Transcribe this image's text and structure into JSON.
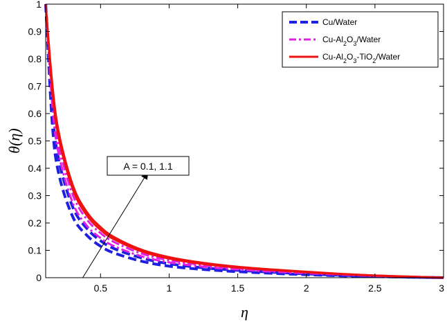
{
  "chart_data": {
    "type": "line",
    "title": "",
    "xlabel": "η",
    "ylabel": "θ(η)",
    "xlim": [
      0.1,
      3
    ],
    "ylim": [
      0,
      1
    ],
    "xticks": [
      "0.5",
      "1",
      "1.5",
      "2",
      "2.5",
      "3"
    ],
    "yticks": [
      "0",
      "0.1",
      "0.2",
      "0.3",
      "0.4",
      "0.5",
      "0.6",
      "0.7",
      "0.8",
      "0.9",
      "1"
    ],
    "grid": false,
    "legend_position": "top-right",
    "x": [
      0.1,
      0.15,
      0.2,
      0.3,
      0.4,
      0.5,
      0.6,
      0.8,
      1.0,
      1.25,
      1.5,
      1.75,
      2.0,
      2.25,
      2.5,
      2.75,
      3.0
    ],
    "series": [
      {
        "name": "Cu/Water",
        "style": "dashed",
        "color": "#1f1fe0",
        "variant": "A = 0.1",
        "values": [
          1.0,
          0.55,
          0.37,
          0.22,
          0.155,
          0.115,
          0.09,
          0.06,
          0.042,
          0.03,
          0.022,
          0.016,
          0.011,
          0.007,
          0.004,
          0.002,
          0.0
        ]
      },
      {
        "name": "Cu/Water",
        "style": "dashed",
        "color": "#1f1fe0",
        "variant": "A = 1.1",
        "values": [
          1.0,
          0.6,
          0.42,
          0.255,
          0.18,
          0.135,
          0.106,
          0.072,
          0.051,
          0.036,
          0.027,
          0.02,
          0.014,
          0.009,
          0.005,
          0.002,
          0.0
        ]
      },
      {
        "name": "Cu-Al2O3/Water",
        "style": "dashdot",
        "color": "#e020e0",
        "variant": "A = 0.1",
        "values": [
          1.0,
          0.62,
          0.44,
          0.27,
          0.19,
          0.145,
          0.115,
          0.078,
          0.056,
          0.04,
          0.03,
          0.022,
          0.016,
          0.011,
          0.006,
          0.003,
          0.0
        ]
      },
      {
        "name": "Cu-Al2O3/Water",
        "style": "dashdot",
        "color": "#e020e0",
        "variant": "A = 1.1",
        "values": [
          1.0,
          0.65,
          0.475,
          0.3,
          0.213,
          0.163,
          0.13,
          0.088,
          0.064,
          0.046,
          0.034,
          0.025,
          0.018,
          0.012,
          0.007,
          0.003,
          0.0
        ]
      },
      {
        "name": "Cu-Al2O3-TiO2/Water",
        "style": "solid",
        "color": "#ee1111",
        "variant": "A = 0.1",
        "values": [
          1.0,
          0.67,
          0.5,
          0.32,
          0.228,
          0.175,
          0.14,
          0.096,
          0.07,
          0.05,
          0.037,
          0.028,
          0.02,
          0.013,
          0.008,
          0.003,
          0.0
        ]
      },
      {
        "name": "Cu-Al2O3-TiO2/Water",
        "style": "solid",
        "color": "#ee1111",
        "variant": "A = 1.1",
        "values": [
          1.0,
          0.7,
          0.52,
          0.335,
          0.24,
          0.185,
          0.148,
          0.102,
          0.075,
          0.054,
          0.04,
          0.03,
          0.022,
          0.014,
          0.008,
          0.004,
          0.0
        ]
      }
    ],
    "legend": [
      {
        "label": "Cu/Water",
        "style": "dashed",
        "color": "#1f1fe0"
      },
      {
        "label": "Cu-Al2O3/Water",
        "style": "dashdot",
        "color": "#e020e0"
      },
      {
        "label": "Cu-Al2O3-TiO2/Water",
        "style": "solid",
        "color": "#ee1111"
      }
    ],
    "annotation": {
      "text": "A = 0.1, 1.1",
      "arrow_from": [
        0.37,
        0.0
      ],
      "arrow_to": [
        0.85,
        0.39
      ]
    }
  }
}
